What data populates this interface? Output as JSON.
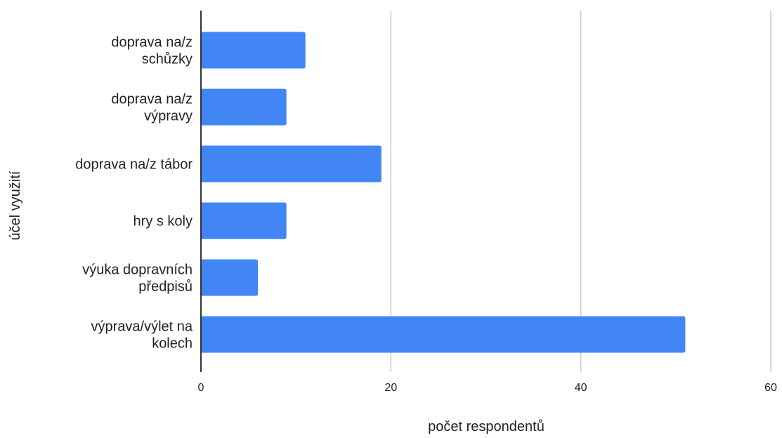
{
  "chart_data": {
    "type": "bar",
    "orientation": "horizontal",
    "categories": [
      [
        "doprava na/z",
        "schůzky"
      ],
      [
        "doprava na/z",
        "výpravy"
      ],
      [
        "doprava na/z tábor"
      ],
      [
        "hry s koly"
      ],
      [
        "výuka dopravních",
        "předpisů"
      ],
      [
        "výprava/výlet na",
        "kolech"
      ]
    ],
    "values": [
      11,
      9,
      19,
      9,
      6,
      51
    ],
    "xlabel": "počet respondentů",
    "ylabel": "účel využití",
    "xlim": [
      0,
      60
    ],
    "xticks": [
      "0",
      "20",
      "40",
      "60"
    ],
    "grid": "vertical",
    "bar_color": "#4285f4",
    "grid_color": "#cccccc",
    "axis_color": "#333333"
  }
}
